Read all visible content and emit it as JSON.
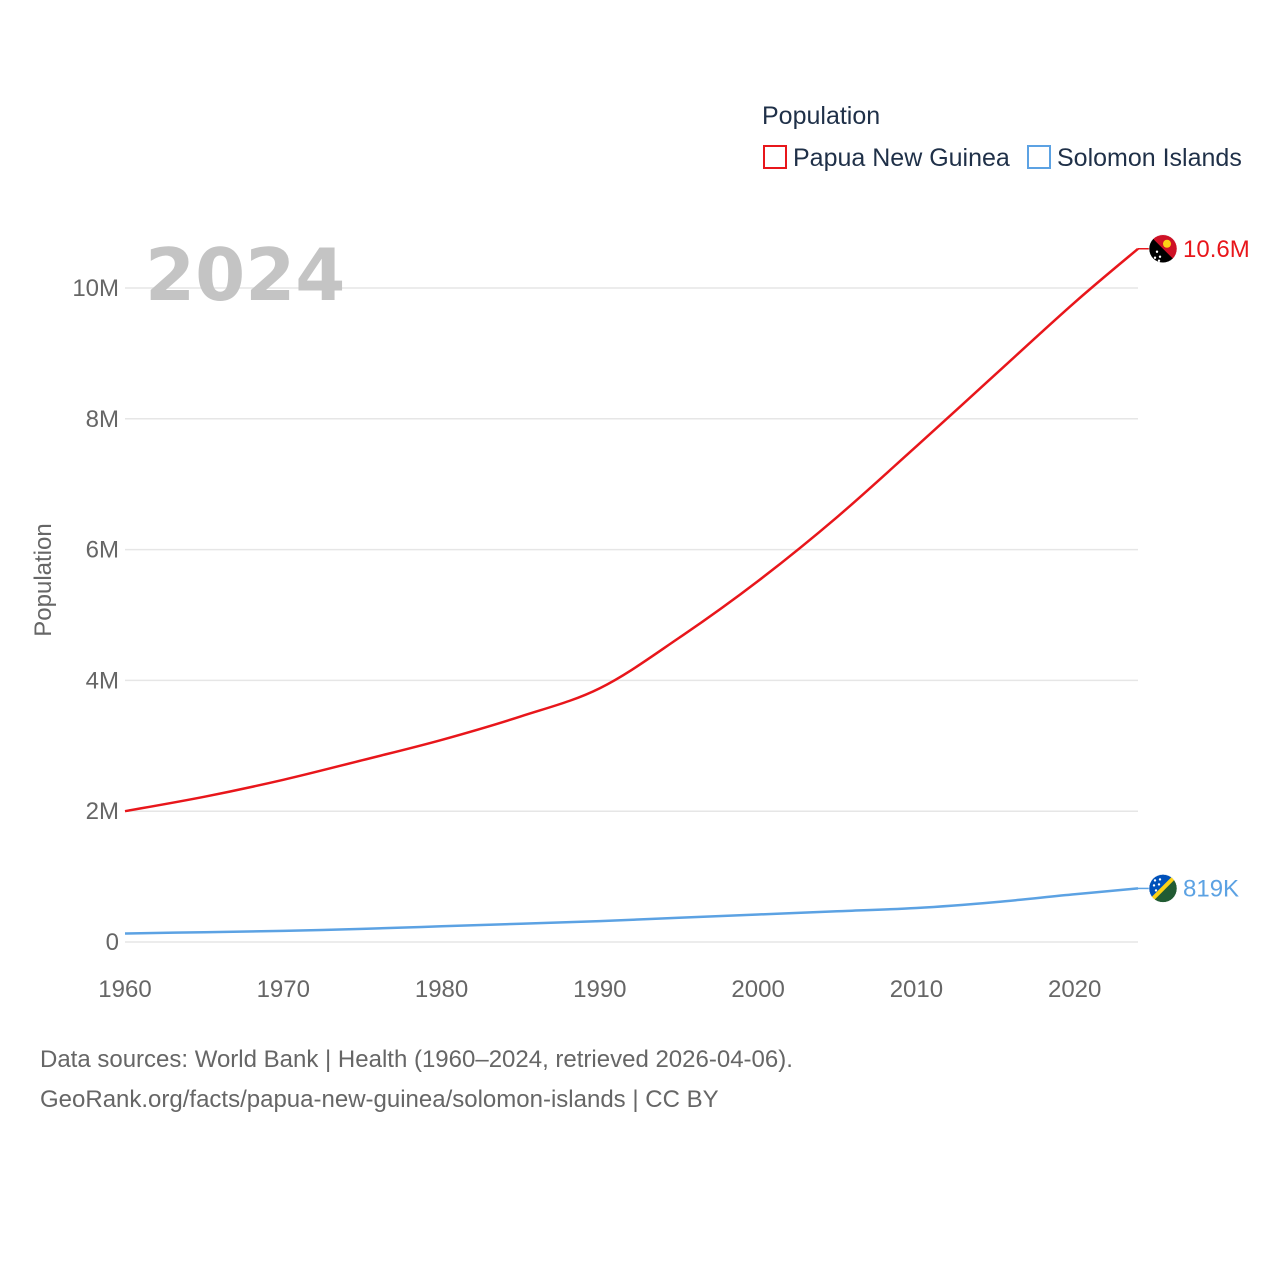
{
  "chart_data": {
    "type": "line",
    "year_overlay": "2024",
    "ylabel": "Population",
    "xlim": [
      1960,
      2024
    ],
    "ylim": [
      0,
      10000000
    ],
    "x_ticks": [
      1960,
      1970,
      1980,
      1990,
      2000,
      2010,
      2020
    ],
    "y_ticks": [
      {
        "value": 0,
        "label": "0"
      },
      {
        "value": 2000000,
        "label": "2M"
      },
      {
        "value": 4000000,
        "label": "4M"
      },
      {
        "value": 6000000,
        "label": "6M"
      },
      {
        "value": 8000000,
        "label": "8M"
      },
      {
        "value": 10000000,
        "label": "10M"
      }
    ],
    "grid": true,
    "legend": {
      "title": "Population",
      "position": "top-right"
    },
    "series": [
      {
        "name": "Papua New Guinea",
        "color": "#e8161b",
        "end_label": "10.6M",
        "flag_icon": "papua-new-guinea-flag-icon",
        "points": [
          [
            1960,
            2000000
          ],
          [
            1965,
            2220000
          ],
          [
            1970,
            2480000
          ],
          [
            1975,
            2780000
          ],
          [
            1980,
            3090000
          ],
          [
            1985,
            3450000
          ],
          [
            1990,
            3880000
          ],
          [
            1995,
            4650000
          ],
          [
            2000,
            5520000
          ],
          [
            2005,
            6500000
          ],
          [
            2010,
            7580000
          ],
          [
            2015,
            8680000
          ],
          [
            2020,
            9780000
          ],
          [
            2024,
            10600000
          ]
        ]
      },
      {
        "name": "Solomon Islands",
        "color": "#5ca2e3",
        "end_label": "819K",
        "flag_icon": "solomon-islands-flag-icon",
        "points": [
          [
            1960,
            130000
          ],
          [
            1965,
            150000
          ],
          [
            1970,
            170000
          ],
          [
            1975,
            200000
          ],
          [
            1980,
            240000
          ],
          [
            1985,
            280000
          ],
          [
            1990,
            320000
          ],
          [
            1995,
            370000
          ],
          [
            2000,
            420000
          ],
          [
            2005,
            470000
          ],
          [
            2010,
            520000
          ],
          [
            2015,
            610000
          ],
          [
            2020,
            730000
          ],
          [
            2024,
            819000
          ]
        ]
      }
    ]
  },
  "source": {
    "line1": "Data sources: World Bank | Health (1960–2024, retrieved 2026-04-06).",
    "line2": "GeoRank.org/facts/papua-new-guinea/solomon-islands | CC BY"
  }
}
